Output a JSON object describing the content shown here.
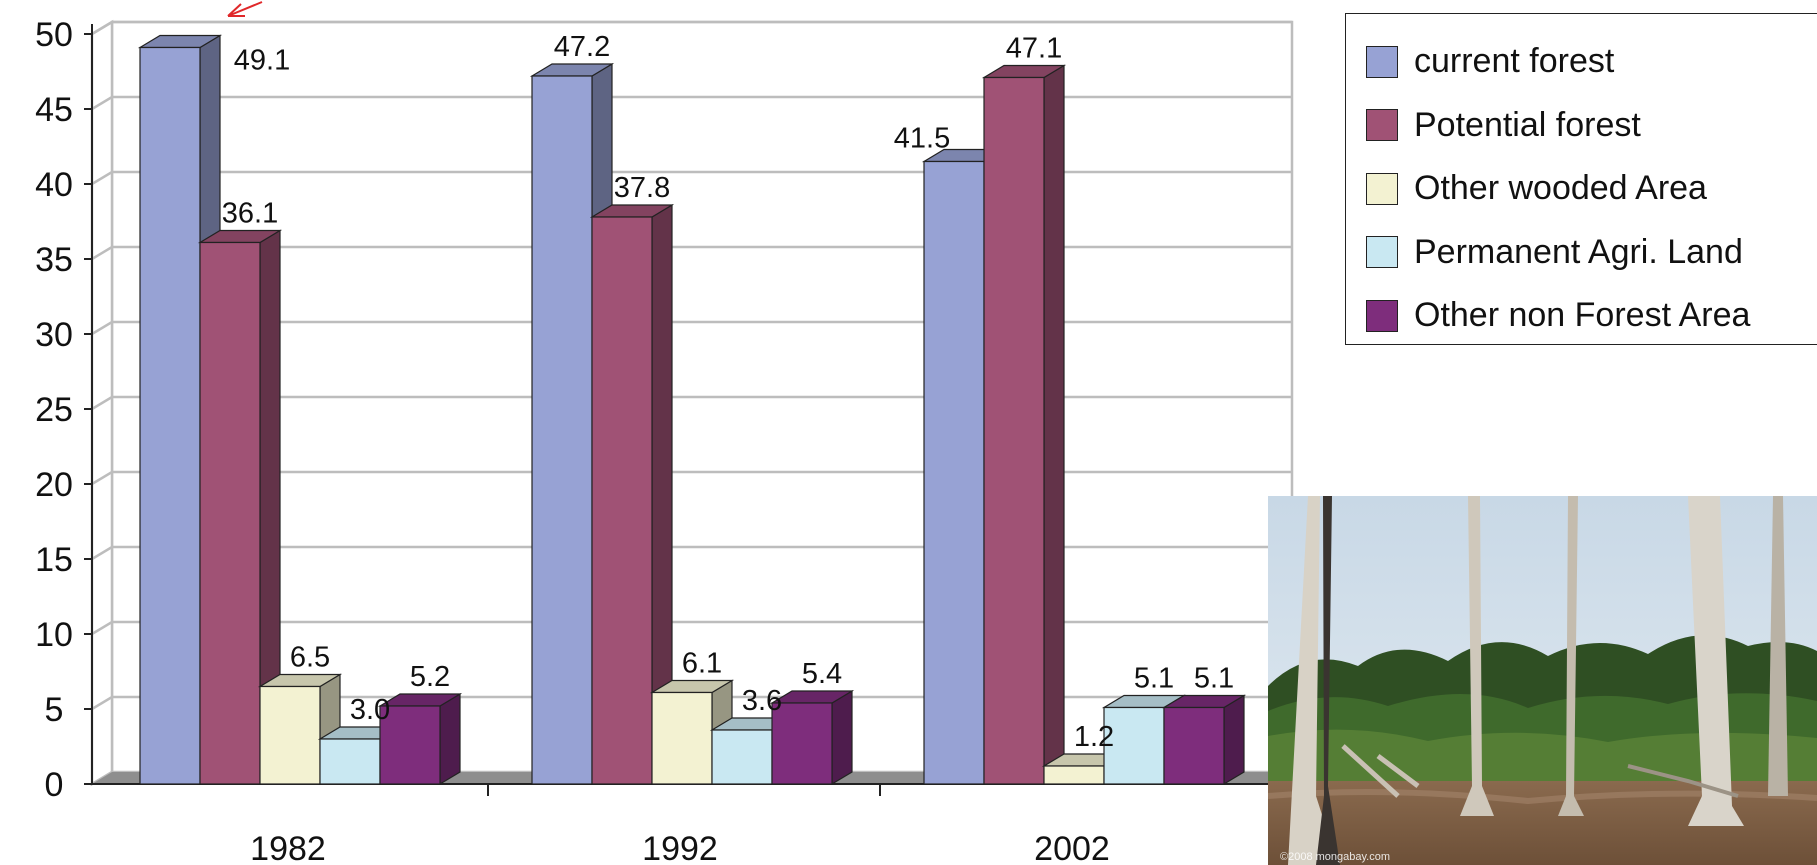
{
  "chart_data": {
    "type": "bar",
    "categories": [
      "1982",
      "1992",
      "2002"
    ],
    "series": [
      {
        "name": "current forest",
        "color": "#97a2d4",
        "values": [
          49.1,
          47.2,
          41.5
        ],
        "labels": [
          "49.1",
          "47.2",
          "41.5"
        ]
      },
      {
        "name": "Potential forest",
        "color": "#a05275",
        "values": [
          36.1,
          37.8,
          47.1
        ],
        "labels": [
          "36.1",
          "37.8",
          "47.1"
        ]
      },
      {
        "name": "Other wooded Area",
        "color": "#f3f2d2",
        "values": [
          6.5,
          6.1,
          1.2
        ],
        "labels": [
          "6.5",
          "6.1",
          "1.2"
        ]
      },
      {
        "name": "Permanent Agri. Land",
        "color": "#c9e8f2",
        "values": [
          3.0,
          3.6,
          5.1
        ],
        "labels": [
          "3.0",
          "3.6",
          "5.1"
        ]
      },
      {
        "name": "Other non Forest Area",
        "color": "#7e2d7c",
        "values": [
          5.2,
          5.4,
          5.1
        ],
        "labels": [
          "5.2",
          "5.4",
          "5.1"
        ]
      }
    ],
    "ylim": [
      0,
      50
    ],
    "yticks": [
      "0",
      "5",
      "10",
      "15",
      "20",
      "25",
      "30",
      "35",
      "40",
      "45",
      "50"
    ],
    "grid": true,
    "legend_position": "top-right"
  },
  "photo": {
    "caption": "©2008 mongabay.com"
  }
}
